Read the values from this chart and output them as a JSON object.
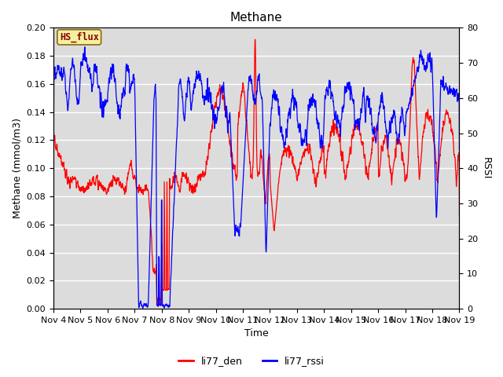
{
  "title": "Methane",
  "ylabel_left": "Methane (mmol/m3)",
  "ylabel_right": "RSSI",
  "xlabel": "Time",
  "ylim_left": [
    0.0,
    0.2
  ],
  "ylim_right": [
    0,
    80
  ],
  "legend_labels": [
    "li77_den",
    "li77_rssi"
  ],
  "legend_colors": [
    "red",
    "blue"
  ],
  "hs_flux_label": "HS_flux",
  "bg_color": "#dcdcdc",
  "red_line_color": "red",
  "blue_line_color": "blue",
  "title_fontsize": 11,
  "axis_label_fontsize": 9,
  "tick_label_fontsize": 8,
  "linewidth": 0.9
}
